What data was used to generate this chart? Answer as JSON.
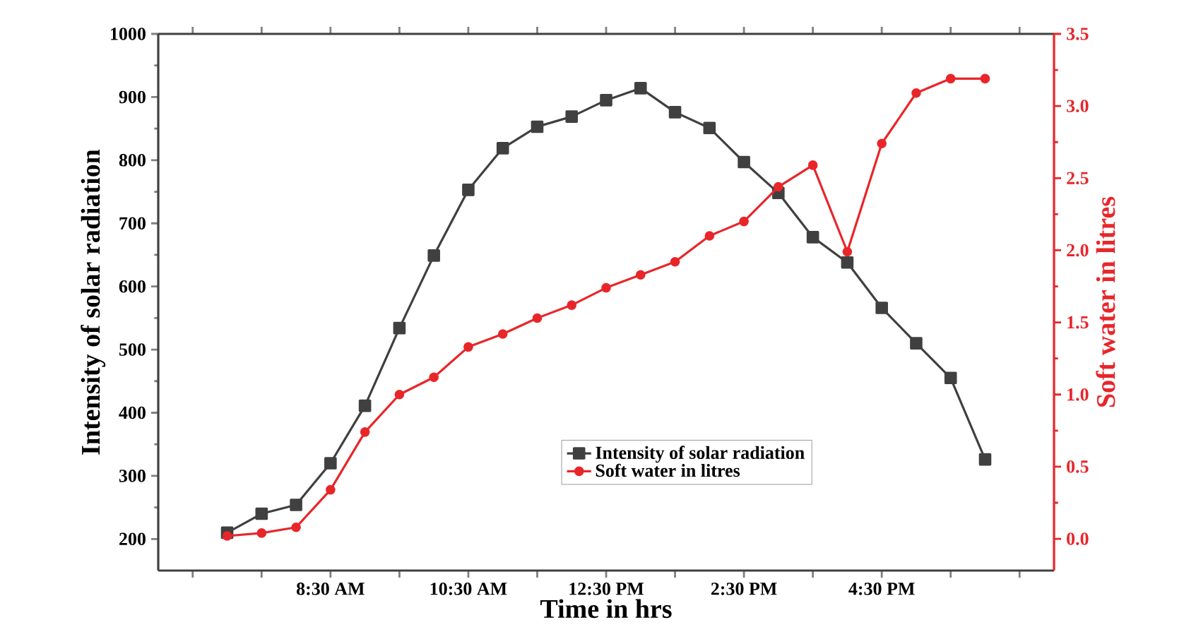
{
  "chart_data": {
    "type": "line",
    "xlabel": "Time in hrs",
    "ylabel": "Intensity of solar radiation",
    "y2label": "Soft water in litres",
    "x": [
      7.0,
      7.5,
      8.0,
      8.5,
      9.0,
      9.5,
      10.0,
      10.5,
      11.0,
      11.5,
      12.0,
      12.5,
      13.0,
      13.5,
      14.0,
      14.5,
      15.0,
      15.5,
      16.0,
      16.5,
      17.0,
      17.5,
      18.0
    ],
    "xlim": [
      6,
      19
    ],
    "xticks": [
      {
        "value": 6.5,
        "label": null
      },
      {
        "value": 7.5,
        "label": null
      },
      {
        "value": 8.5,
        "label": "8:30 AM"
      },
      {
        "value": 9.5,
        "label": null
      },
      {
        "value": 10.5,
        "label": "10:30 AM"
      },
      {
        "value": 11.5,
        "label": null
      },
      {
        "value": 12.5,
        "label": "12:30 PM"
      },
      {
        "value": 13.5,
        "label": null
      },
      {
        "value": 14.5,
        "label": "2:30 PM"
      },
      {
        "value": 15.5,
        "label": null
      },
      {
        "value": 16.5,
        "label": "4:30 PM"
      },
      {
        "value": 17.5,
        "label": null
      },
      {
        "value": 18.5,
        "label": null
      }
    ],
    "ylim": [
      150,
      1000
    ],
    "yticks": [
      200,
      300,
      400,
      500,
      600,
      700,
      800,
      900,
      1000
    ],
    "y2lim": [
      -0.22,
      3.5
    ],
    "y2ticks": [
      {
        "value": 0,
        "label": "0.0"
      },
      {
        "value": 0.5,
        "label": "0.5"
      },
      {
        "value": 1,
        "label": "1.0"
      },
      {
        "value": 1.5,
        "label": "1.5"
      },
      {
        "value": 2,
        "label": "2.0"
      },
      {
        "value": 2.5,
        "label": "2.5"
      },
      {
        "value": 3,
        "label": "3.0"
      },
      {
        "value": 3.5,
        "label": "3.5"
      }
    ],
    "legend": "bottom",
    "series": [
      {
        "name": "Intensity of solar radiation",
        "color": "#404040",
        "marker": "square",
        "values": [
          210,
          240,
          254,
          320,
          411,
          534,
          649,
          753,
          819,
          853,
          869,
          895,
          914,
          876,
          851,
          797,
          748,
          678,
          638,
          566,
          510,
          455,
          326
        ]
      },
      {
        "name": "Soft water in litres",
        "color": "#e8262a",
        "marker": "circle",
        "axis": "y2",
        "values": [
          0.02,
          0.04,
          0.08,
          0.34,
          0.74,
          1.0,
          1.12,
          1.33,
          1.42,
          1.53,
          1.62,
          1.74,
          1.83,
          1.92,
          2.1,
          2.2,
          2.44,
          2.59,
          1.99,
          2.74,
          3.09,
          3.19,
          3.19
        ]
      }
    ]
  }
}
